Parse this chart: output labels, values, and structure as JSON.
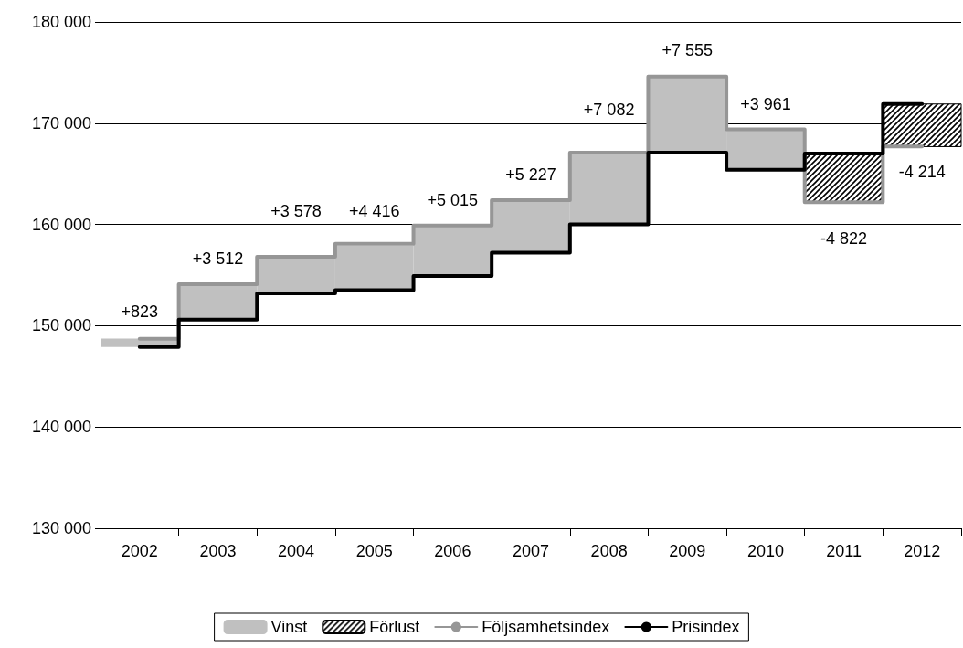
{
  "chart_data": {
    "type": "step",
    "categories": [
      "2002",
      "2003",
      "2004",
      "2005",
      "2006",
      "2007",
      "2008",
      "2009",
      "2010",
      "2011",
      "2012"
    ],
    "ylim": [
      130000,
      180000
    ],
    "yticks": [
      {
        "value": 130000,
        "label": "130 000"
      },
      {
        "value": 140000,
        "label": "140 000"
      },
      {
        "value": 150000,
        "label": "150 000"
      },
      {
        "value": 160000,
        "label": "160 000"
      },
      {
        "value": 170000,
        "label": "170 000"
      },
      {
        "value": 180000,
        "label": "180 000"
      }
    ],
    "grid": "y",
    "legend": "bottom",
    "marker": "none",
    "series": [
      {
        "name": "Vinst",
        "type": "bar",
        "color": "#c0c0c0",
        "base": [
          147900,
          150600,
          153200,
          153500,
          154900,
          157200,
          160000,
          167100,
          165400,
          null,
          null
        ],
        "values": [
          823,
          3512,
          3578,
          4416,
          5015,
          5227,
          7082,
          7555,
          3961,
          null,
          null
        ],
        "value_labels": [
          "+823",
          "+3 512",
          "+3 578",
          "+4 416",
          "+5 015",
          "+5 227",
          "+7 082",
          "+7 555",
          "+3 961",
          null,
          null
        ]
      },
      {
        "name": "Förlust",
        "type": "bar",
        "color": "#000000",
        "base": [
          null,
          null,
          null,
          null,
          null,
          null,
          null,
          null,
          null,
          167000,
          171900
        ],
        "values": [
          null,
          null,
          null,
          null,
          null,
          null,
          null,
          null,
          null,
          -4822,
          -4214
        ],
        "value_labels": [
          null,
          null,
          null,
          null,
          null,
          null,
          null,
          null,
          null,
          "-4 822",
          "-4 214"
        ]
      },
      {
        "name": "Följsamhetsindex",
        "color": "#969696",
        "values": [
          148700,
          154100,
          156800,
          158100,
          159900,
          162400,
          167100,
          174600,
          169400,
          162200,
          167700
        ]
      },
      {
        "name": "Prisindex",
        "color": "#000000",
        "values": [
          147900,
          150600,
          153200,
          153500,
          154900,
          157200,
          160000,
          167100,
          165400,
          167000,
          171900
        ]
      }
    ]
  }
}
